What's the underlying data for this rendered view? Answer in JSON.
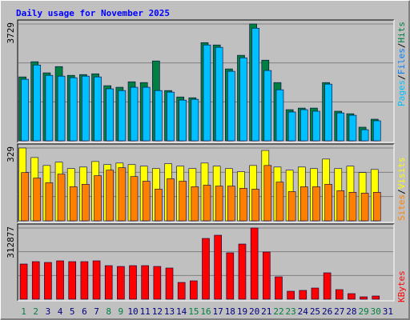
{
  "chart_data": [
    {
      "type": "bar",
      "title": "Daily usage for November 2025",
      "categories": [
        "1",
        "2",
        "3",
        "4",
        "5",
        "6",
        "7",
        "8",
        "9",
        "10",
        "11",
        "12",
        "13",
        "14",
        "15",
        "16",
        "17",
        "18",
        "19",
        "20",
        "21",
        "22",
        "23",
        "24",
        "25",
        "26",
        "27",
        "28",
        "29",
        "30",
        "31"
      ],
      "category_colors": [
        "#008040",
        "#008040",
        "#000080",
        "#000080",
        "#000080",
        "#000080",
        "#000080",
        "#008040",
        "#008040",
        "#000080",
        "#000080",
        "#000080",
        "#000080",
        "#000080",
        "#008040",
        "#008040",
        "#000080",
        "#000080",
        "#000080",
        "#000080",
        "#000080",
        "#008040",
        "#008040",
        "#000080",
        "#000080",
        "#000080",
        "#000080",
        "#000080",
        "#008040",
        "#008040",
        "#000080"
      ],
      "series": [
        {
          "name": "Hits",
          "color": "#008040",
          "values": [
            2040,
            2525,
            2170,
            2370,
            2090,
            2115,
            2140,
            1760,
            1710,
            1885,
            1860,
            2550,
            1605,
            1400,
            1375,
            3135,
            3060,
            2295,
            2730,
            3729,
            2575,
            1860,
            995,
            1045,
            1045,
            1860,
            945,
            865,
            435,
            690,
            null
          ]
        },
        {
          "name": "Files",
          "color": "#00C0FF",
          "values": [
            1965,
            2420,
            2090,
            2065,
            2015,
            2065,
            2040,
            1660,
            1605,
            1710,
            1710,
            1605,
            1555,
            1300,
            1325,
            3060,
            2985,
            2220,
            2650,
            3595,
            2245,
            1630,
            920,
            995,
            945,
            1810,
            890,
            815,
            355,
            640,
            null
          ]
        }
      ],
      "legend": [
        "Pages",
        "Files",
        "Hits"
      ],
      "legend_colors": [
        "#00C0FF",
        "#0080FF",
        "#008040"
      ],
      "legend_separator": "/",
      "ylim": [
        0,
        3729
      ],
      "yticks": [
        3729
      ]
    },
    {
      "type": "bar",
      "series": [
        {
          "name": "Visits",
          "color": "#FFFF00",
          "values": [
            329,
            286,
            250,
            265,
            236,
            243,
            268,
            254,
            261,
            254,
            247,
            236,
            258,
            247,
            236,
            261,
            247,
            236,
            222,
            250,
            318,
            243,
            229,
            243,
            236,
            279,
            236,
            247,
            218,
            232,
            null
          ]
        },
        {
          "name": "Sites",
          "color": "#FF8000",
          "values": [
            218,
            193,
            172,
            211,
            154,
            165,
            204,
            229,
            240,
            200,
            179,
            143,
            190,
            179,
            154,
            161,
            157,
            157,
            147,
            143,
            250,
            175,
            132,
            154,
            154,
            165,
            136,
            129,
            125,
            129,
            null
          ]
        }
      ],
      "legend": [
        "Sites",
        "Visits"
      ],
      "legend_colors": [
        "#FF8000",
        "#FFFF00"
      ],
      "legend_separator": "/",
      "ylim": [
        0,
        329
      ],
      "yticks": [
        329
      ]
    },
    {
      "type": "bar",
      "series": [
        {
          "name": "KBytes",
          "color": "#FF0000",
          "values": [
            154700,
            165200,
            161700,
            168700,
            165200,
            165200,
            168700,
            147600,
            144100,
            147600,
            147600,
            144100,
            137100,
            73800,
            80800,
            267100,
            281200,
            203900,
            242500,
            312877,
            207400,
            98400,
            35150,
            38700,
            49200,
            116000,
            42200,
            24600,
            10500,
            14100,
            null
          ]
        }
      ],
      "legend": [
        "KBytes"
      ],
      "legend_colors": [
        "#FF0000"
      ],
      "ylim": [
        0,
        312877
      ],
      "yticks": [
        312877
      ]
    }
  ]
}
